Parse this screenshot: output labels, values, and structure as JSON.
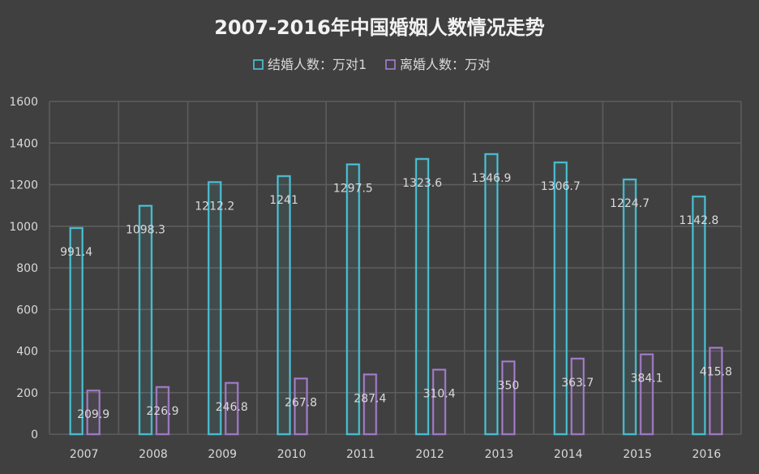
{
  "chart_data": {
    "type": "bar",
    "title": "2007-2016年中国婚姻人数情况走势",
    "categories": [
      "2007",
      "2008",
      "2009",
      "2010",
      "2011",
      "2012",
      "2013",
      "2014",
      "2015",
      "2016"
    ],
    "series": [
      {
        "name": "结婚人数：万对1",
        "values": [
          991.4,
          1098.3,
          1212.2,
          1241,
          1297.5,
          1323.6,
          1346.9,
          1306.7,
          1224.7,
          1142.8
        ],
        "color": "#4bc8dd"
      },
      {
        "name": "离婚人数：万对",
        "values": [
          209.9,
          226.9,
          246.8,
          267.8,
          287.4,
          310.4,
          350,
          363.7,
          384.1,
          415.8
        ],
        "color": "#a77fd0"
      }
    ],
    "ylim": [
      0,
      1600
    ],
    "yticks": [
      0,
      200,
      400,
      600,
      800,
      1000,
      1200,
      1400,
      1600
    ],
    "grid": true,
    "legend_position": "top-center"
  },
  "colors": {
    "background": "#404040",
    "grid": "#5e5e5e",
    "text": "#d9d9d9"
  }
}
